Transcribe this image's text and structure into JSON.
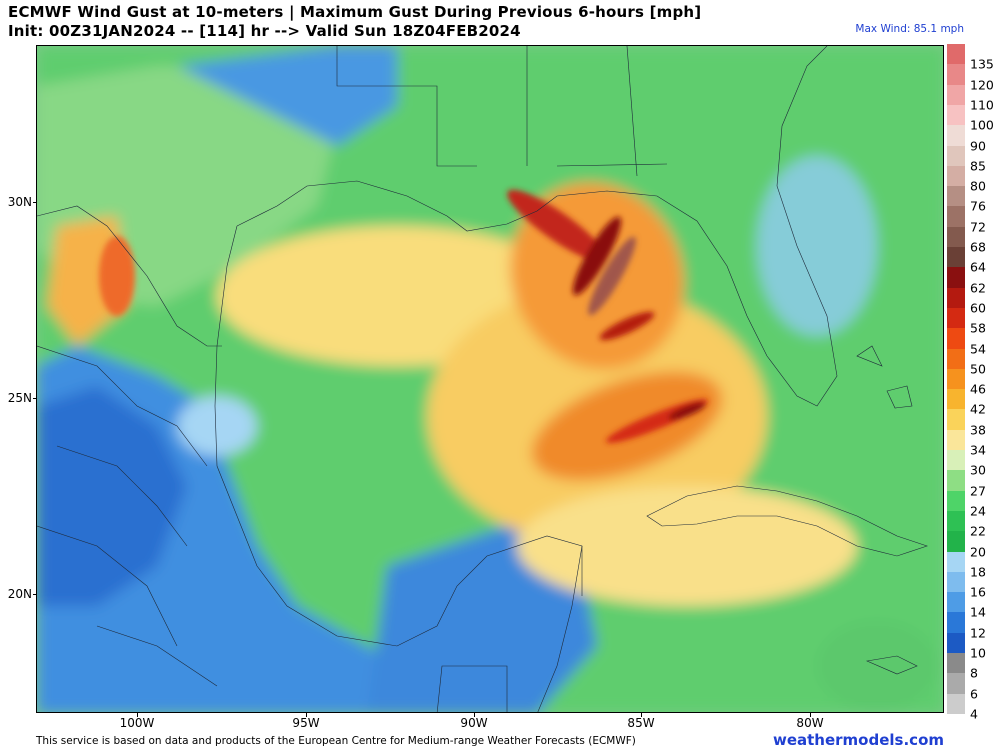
{
  "header": {
    "title_line1": "ECMWF Wind Gust at 10-meters | Maximum Gust During Previous 6-hours [mph]",
    "title_line2": "Init: 00Z31JAN2024 -- [114] hr --> Valid Sun 18Z04FEB2024",
    "max_wind": "Max Wind: 85.1 mph"
  },
  "axes": {
    "lat_labels": [
      "30N",
      "25N",
      "20N"
    ],
    "lon_labels": [
      "100W",
      "95W",
      "90W",
      "85W",
      "80W"
    ]
  },
  "colorbar": {
    "labels": [
      "135",
      "120",
      "110",
      "100",
      "90",
      "85",
      "80",
      "76",
      "72",
      "68",
      "64",
      "62",
      "60",
      "58",
      "54",
      "50",
      "46",
      "42",
      "38",
      "34",
      "30",
      "27",
      "24",
      "22",
      "20",
      "18",
      "16",
      "14",
      "12",
      "10",
      "8",
      "6",
      "4"
    ],
    "colors": [
      "#e06a6a",
      "#e88888",
      "#f0a6a6",
      "#f7c2c2",
      "#efdcd6",
      "#e0c6bc",
      "#d4aea4",
      "#b58f84",
      "#9c7266",
      "#835a4e",
      "#6a4036",
      "#8a1010",
      "#b41a10",
      "#d42a12",
      "#ee4a12",
      "#f26e16",
      "#f6921e",
      "#f8b42e",
      "#fad35a",
      "#fae69a",
      "#d8f0b8",
      "#8ede84",
      "#4ed468",
      "#2ec154",
      "#22b34a",
      "#a6d6f4",
      "#7ebcee",
      "#4e9ce6",
      "#2a78d8",
      "#1c5ac4",
      "#8a8a8a",
      "#aaaaaa",
      "#cccccc"
    ]
  },
  "footer": {
    "attribution": "This service is based on data and products of the European Centre for Medium-range Weather Forecasts (ECMWF)",
    "brand": "weathermodels.com"
  }
}
